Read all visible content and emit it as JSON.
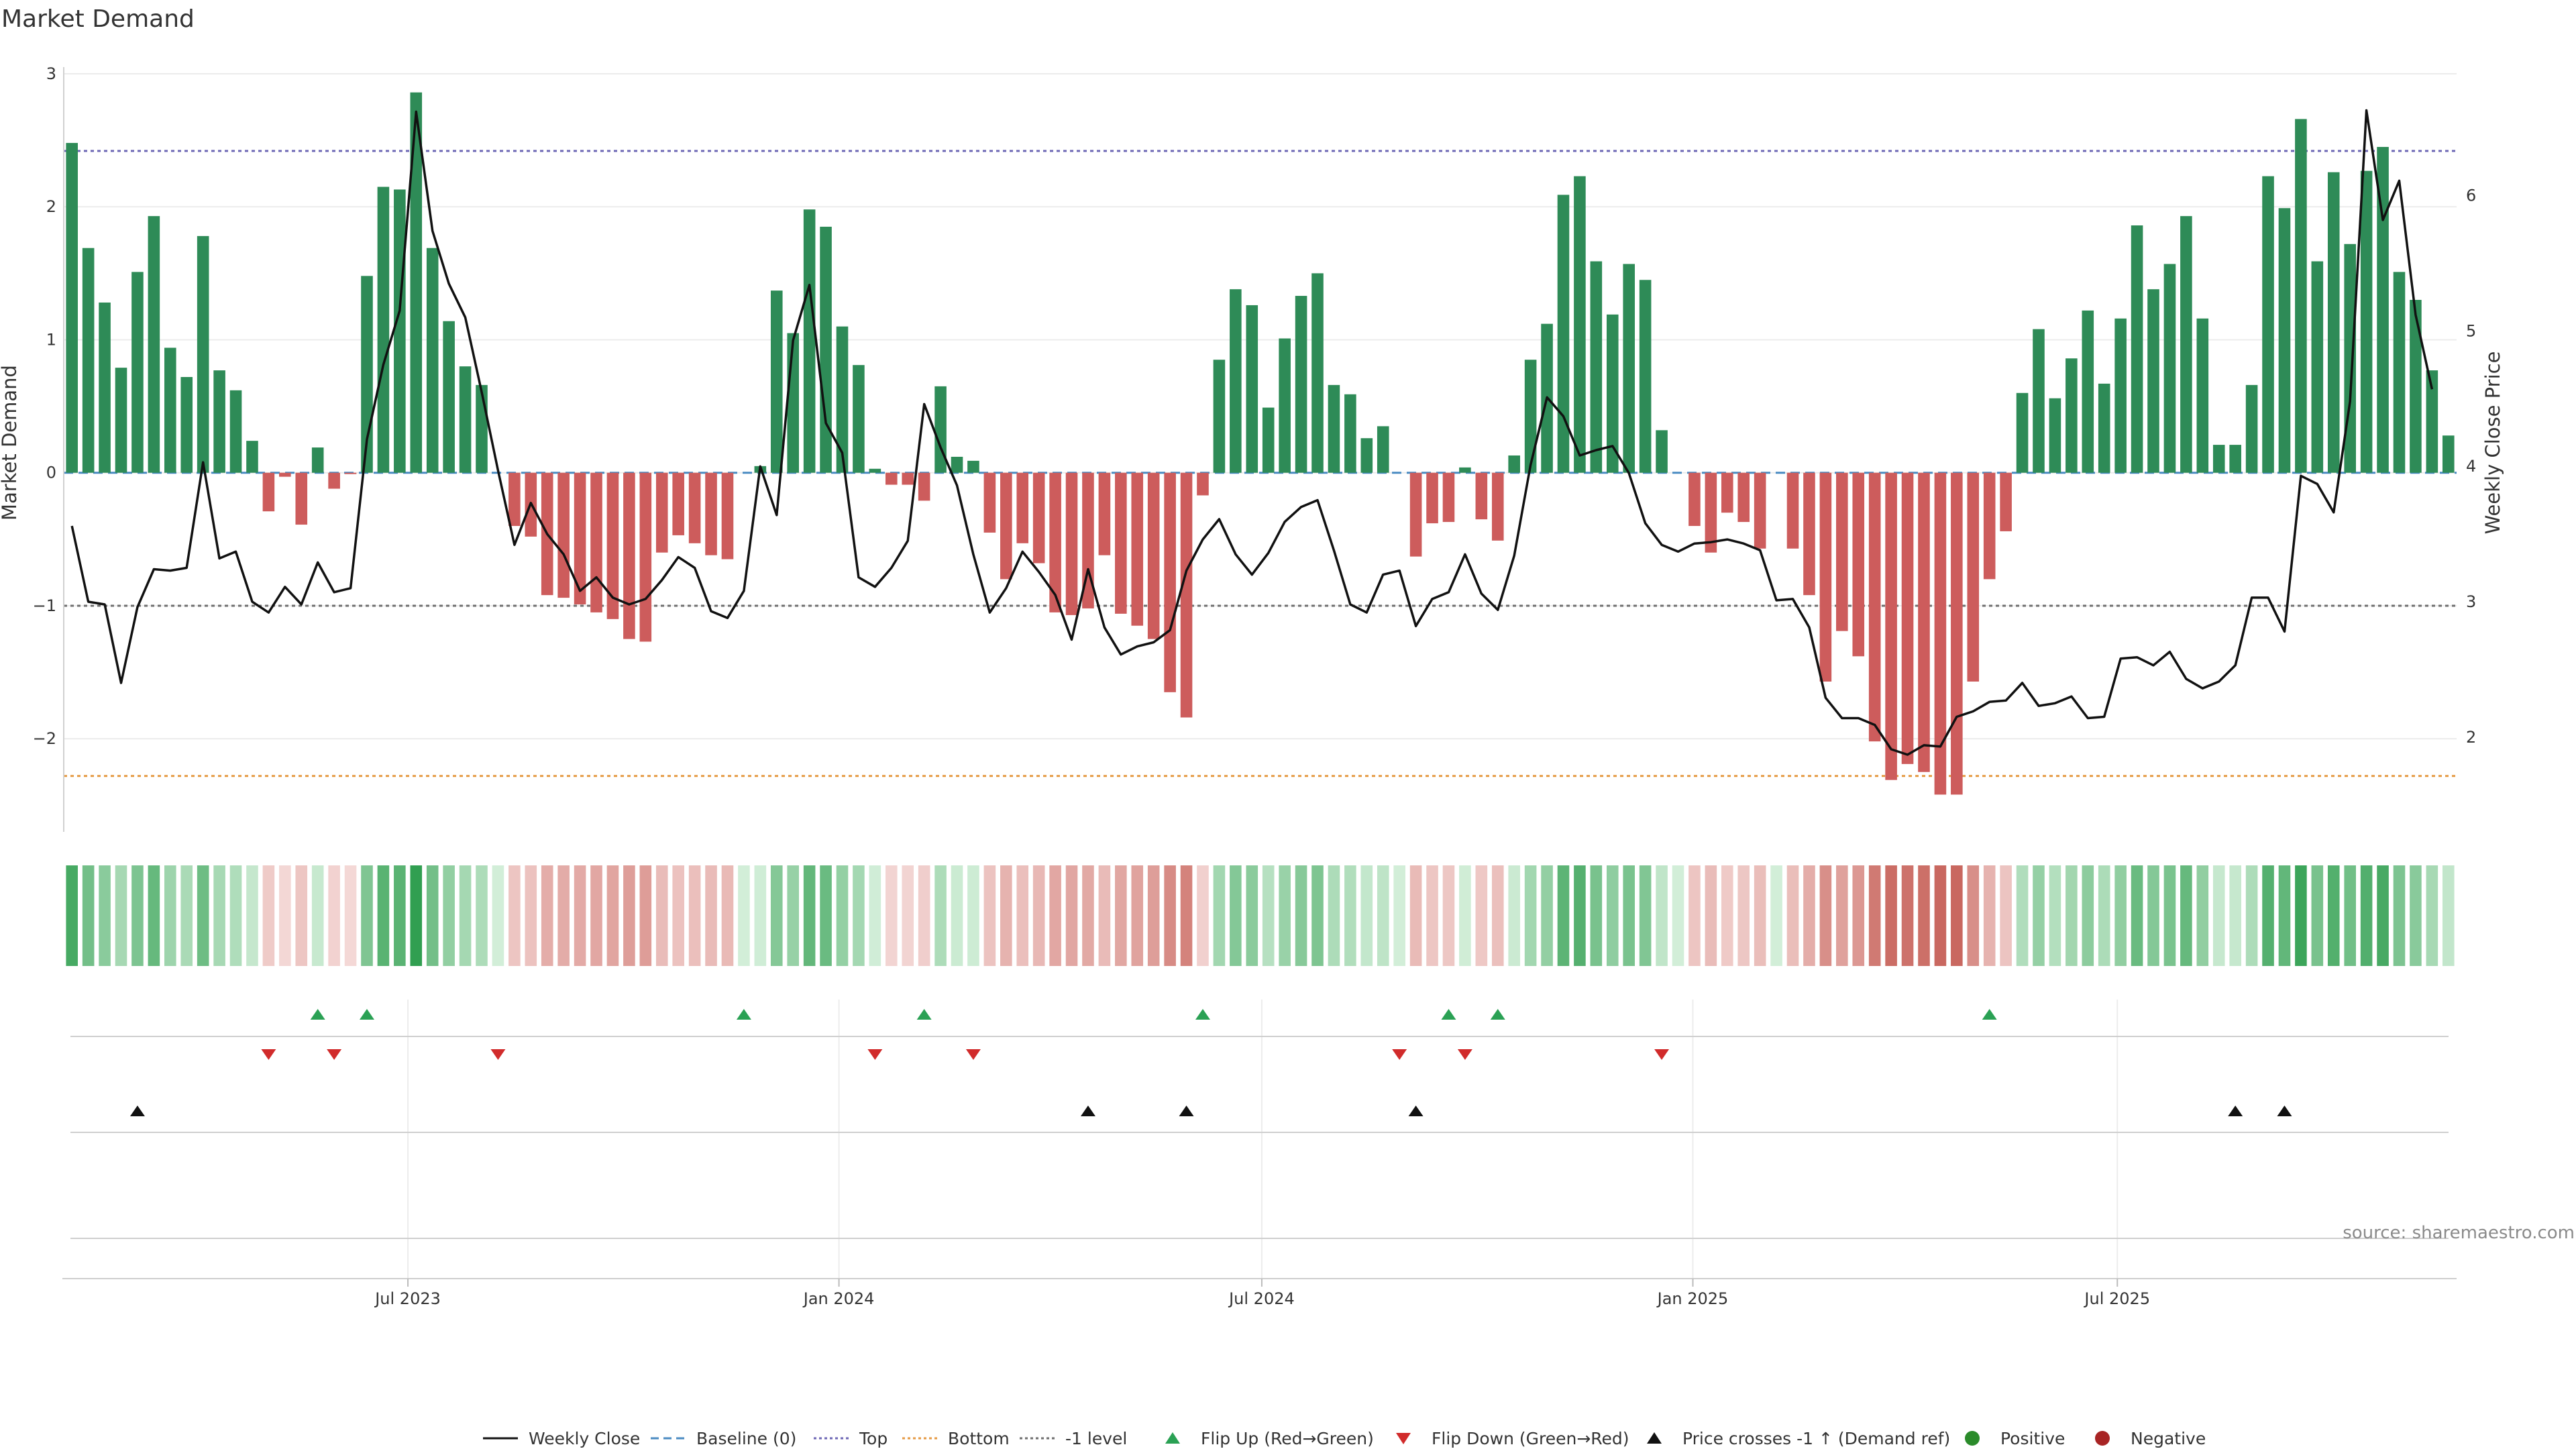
{
  "chart_data": {
    "type": "bar",
    "title": "Market Demand",
    "ylabel": "Market Demand",
    "ylabel_right": "Weekly Close Price",
    "ylim": [
      -2.7,
      3.0
    ],
    "ylim_right": [
      1.3,
      6.9
    ],
    "yticks": [
      {
        "v": 3,
        "label": "3"
      },
      {
        "v": 2,
        "label": "2"
      },
      {
        "v": 1,
        "label": "1"
      },
      {
        "v": 0,
        "label": "0"
      },
      {
        "v": -1,
        "label": "−1"
      },
      {
        "v": -2,
        "label": "−2"
      }
    ],
    "yticks_right": [
      {
        "v": 6,
        "label": "6"
      },
      {
        "v": 5,
        "label": "5"
      },
      {
        "v": 4,
        "label": "4"
      },
      {
        "v": 3,
        "label": "3"
      },
      {
        "v": 2,
        "label": "2"
      }
    ],
    "xticks": [
      {
        "i": 20.5,
        "label": "Jul 2023"
      },
      {
        "i": 46.8,
        "label": "Jan 2024"
      },
      {
        "i": 72.6,
        "label": "Jul 2024"
      },
      {
        "i": 98.9,
        "label": "Jan 2025"
      },
      {
        "i": 124.8,
        "label": "Jul 2025"
      }
    ],
    "reference_lines": {
      "top": 2.42,
      "bottom": -2.28,
      "minus_one": -1.0,
      "baseline": 0
    },
    "series": [
      {
        "name": "Market Demand",
        "values": [
          2.48,
          1.69,
          1.28,
          0.79,
          1.51,
          1.93,
          0.94,
          0.72,
          1.78,
          0.77,
          0.62,
          0.24,
          -0.29,
          -0.03,
          -0.39,
          0.19,
          -0.12,
          -0.01,
          1.48,
          2.15,
          2.13,
          2.86,
          1.69,
          1.14,
          0.8,
          0.66,
          0.0,
          -0.4,
          -0.48,
          -0.92,
          -0.94,
          -0.99,
          -1.05,
          -1.1,
          -1.25,
          -1.27,
          -0.6,
          -0.47,
          -0.53,
          -0.62,
          -0.65,
          0.0,
          0.05,
          1.37,
          1.05,
          1.98,
          1.85,
          1.1,
          0.81,
          0.03,
          -0.09,
          -0.09,
          -0.21,
          0.65,
          0.12,
          0.09,
          -0.45,
          -0.8,
          -0.53,
          -0.68,
          -1.05,
          -1.07,
          -1.02,
          -0.62,
          -1.06,
          -1.15,
          -1.25,
          -1.65,
          -1.84,
          -0.17,
          0.85,
          1.38,
          1.26,
          0.49,
          1.01,
          1.33,
          1.5,
          0.66,
          0.59,
          0.26,
          0.35,
          0.0,
          -0.63,
          -0.38,
          -0.37,
          0.04,
          -0.35,
          -0.51,
          0.13,
          0.85,
          1.12,
          2.09,
          2.23,
          1.59,
          1.19,
          1.57,
          1.45,
          0.32,
          0.0,
          -0.4,
          -0.6,
          -0.3,
          -0.37,
          -0.57,
          0.0,
          -0.57,
          -0.92,
          -1.57,
          -1.19,
          -1.38,
          -2.02,
          -2.31,
          -2.19,
          -2.25,
          -2.42,
          -2.42,
          -1.57,
          -0.8,
          -0.44,
          0.6,
          1.08,
          0.56,
          0.86,
          1.22,
          0.67,
          1.16,
          1.86,
          1.38,
          1.57,
          1.93,
          1.16,
          0.21,
          0.21,
          0.66,
          2.23,
          1.99,
          2.66,
          1.59,
          2.26,
          1.72,
          2.27,
          2.45,
          1.51,
          1.3,
          0.77,
          0.28
        ]
      },
      {
        "name": "Weekly Close",
        "values": [
          3.56,
          3.0,
          2.98,
          2.4,
          2.96,
          3.24,
          3.23,
          3.25,
          4.03,
          3.32,
          3.37,
          3.0,
          2.92,
          3.11,
          2.98,
          3.29,
          3.07,
          3.1,
          4.2,
          4.75,
          5.15,
          6.62,
          5.74,
          5.35,
          5.1,
          4.55,
          3.97,
          3.42,
          3.73,
          3.5,
          3.35,
          3.08,
          3.18,
          3.03,
          2.98,
          3.02,
          3.16,
          3.33,
          3.25,
          2.93,
          2.88,
          3.08,
          4.0,
          3.64,
          4.93,
          5.34,
          4.32,
          4.1,
          3.18,
          3.11,
          3.25,
          3.45,
          4.46,
          4.14,
          3.86,
          3.35,
          2.92,
          3.1,
          3.37,
          3.22,
          3.05,
          2.72,
          3.24,
          2.81,
          2.61,
          2.67,
          2.7,
          2.79,
          3.23,
          3.46,
          3.61,
          3.35,
          3.2,
          3.36,
          3.59,
          3.7,
          3.75,
          3.38,
          2.98,
          2.92,
          3.2,
          3.23,
          2.82,
          3.02,
          3.07,
          3.35,
          3.06,
          2.94,
          3.34,
          4.01,
          4.51,
          4.37,
          4.08,
          4.12,
          4.15,
          3.95,
          3.58,
          3.42,
          3.37,
          3.43,
          3.44,
          3.46,
          3.43,
          3.38,
          3.01,
          3.02,
          2.81,
          2.29,
          2.14,
          2.14,
          2.09,
          1.91,
          1.87,
          1.94,
          1.93,
          2.15,
          2.19,
          2.26,
          2.27,
          2.4,
          2.23,
          2.25,
          2.3,
          2.14,
          2.15,
          2.58,
          2.59,
          2.53,
          2.63,
          2.43,
          2.36,
          2.41,
          2.53,
          3.03,
          3.03,
          2.78,
          3.93,
          3.87,
          3.66,
          4.48,
          6.63,
          5.82,
          6.11,
          5.12,
          4.57
        ]
      }
    ],
    "flip_up": [
      15,
      18,
      41,
      52,
      69,
      84,
      87,
      117
    ],
    "flip_down": [
      12,
      16,
      26,
      49,
      55,
      81,
      85,
      97
    ],
    "price_cross_up": [
      4,
      62,
      68,
      82,
      132,
      135
    ],
    "legend": [
      {
        "key": "weekly-close",
        "label": "Weekly Close"
      },
      {
        "key": "baseline",
        "label": "Baseline (0)"
      },
      {
        "key": "top",
        "label": "Top"
      },
      {
        "key": "bottom",
        "label": "Bottom"
      },
      {
        "key": "minus-one",
        "label": "-1 level"
      },
      {
        "key": "flip-up",
        "label": "Flip Up (Red→Green)"
      },
      {
        "key": "flip-down",
        "label": "Flip Down (Green→Red)"
      },
      {
        "key": "price-cross",
        "label": "Price crosses -1 ↑ (Demand ref)"
      },
      {
        "key": "positive",
        "label": "Positive"
      },
      {
        "key": "negative",
        "label": "Negative"
      }
    ],
    "source": "source: sharemaestro.com"
  },
  "colors": {
    "positive": "#2e8b57",
    "negative": "#cd5c5c",
    "price_line": "#111111",
    "baseline": "#4a8bc2",
    "top": "#6d67b5",
    "bottom": "#e59a43",
    "minus_one": "#6e6e6e",
    "flip_up": "#2aa154",
    "flip_down": "#d12b2b",
    "price_cross": "#111111",
    "positive_dot": "#2a8b2a",
    "negative_dot": "#a82424",
    "grid": "#ececec",
    "axis": "#d0d0d0"
  }
}
